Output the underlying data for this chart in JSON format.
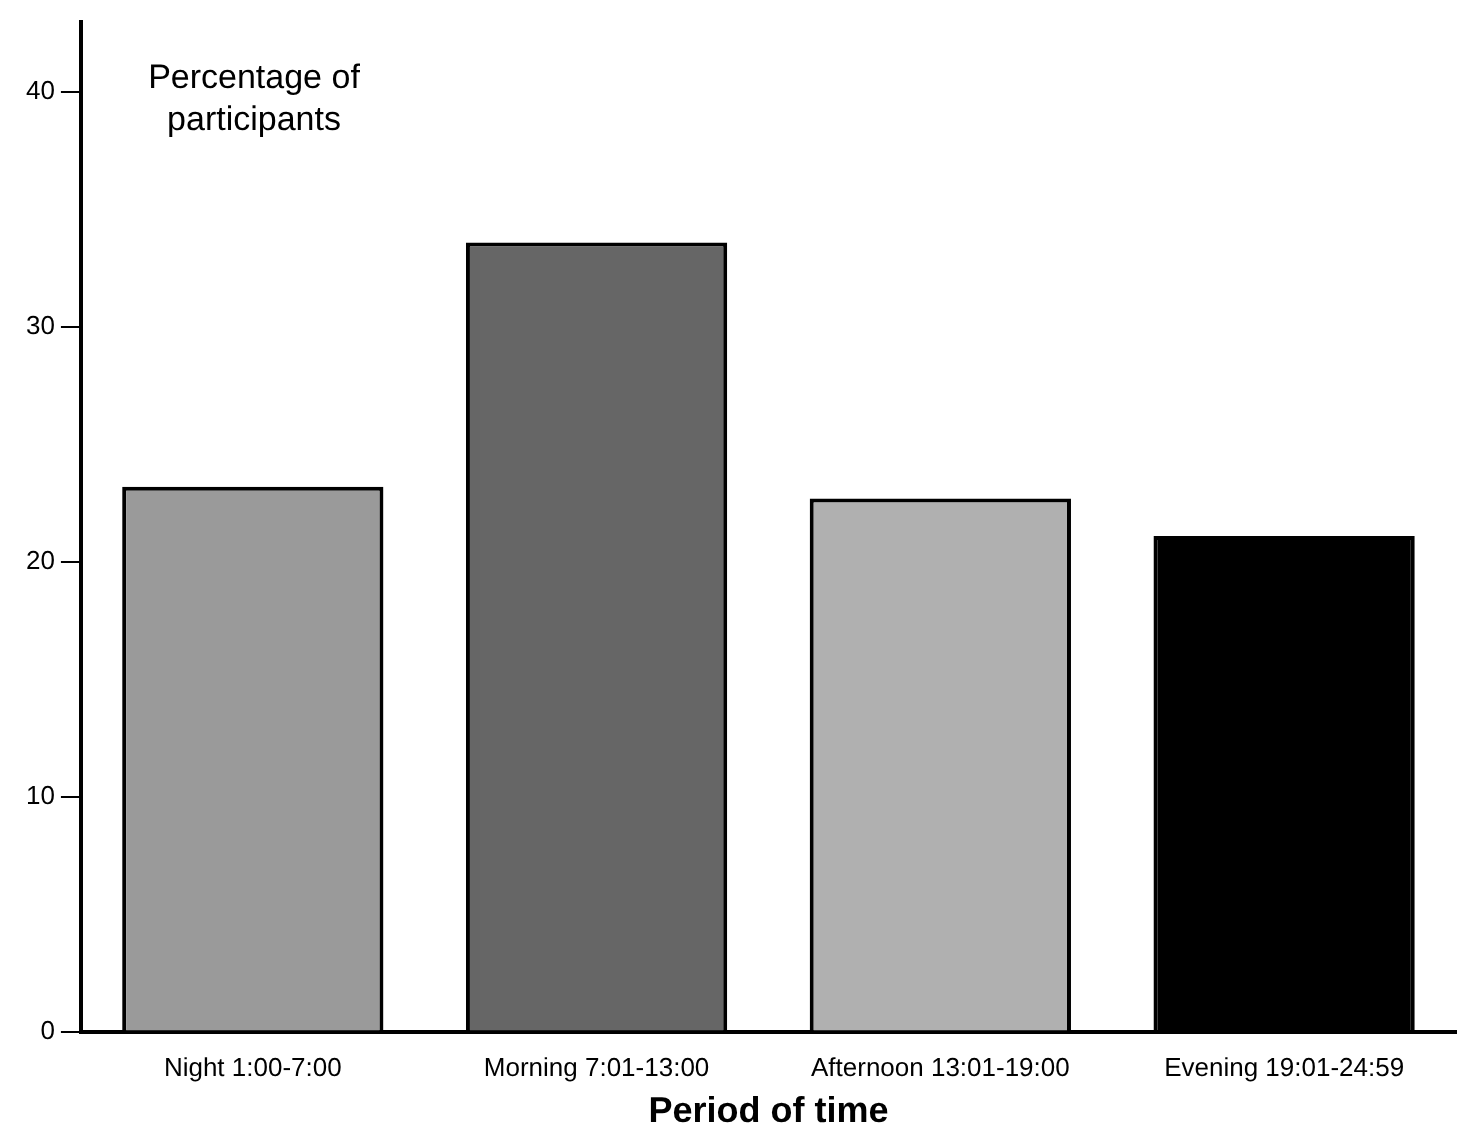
{
  "chart_data": {
    "type": "bar",
    "xlabel": "Period of time",
    "ylabel": "Percentage of participants",
    "categories": [
      "Night 1:00-7:00",
      "Morning 7:01-13:00",
      "Afternoon 13:01-19:00",
      "Evening 19:01-24:59"
    ],
    "values": [
      23.2,
      33.6,
      22.7,
      21.1
    ],
    "colors": [
      "#9a9a9a",
      "#666666",
      "#b0b0b0",
      "#000000"
    ],
    "ylim": [
      0,
      43
    ],
    "yticks": [
      0,
      10,
      20,
      30,
      40
    ],
    "grid": false,
    "legend": false
  }
}
